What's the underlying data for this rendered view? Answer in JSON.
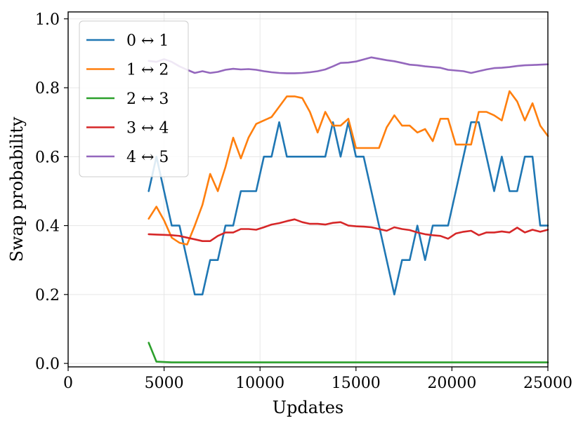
{
  "chart_data": {
    "type": "line",
    "xlabel": "Updates",
    "ylabel": "Swap probability",
    "xlim": [
      0,
      25000
    ],
    "ylim": [
      -0.01,
      1.02
    ],
    "xticks": [
      "0",
      "5000",
      "10000",
      "15000",
      "20000",
      "25000"
    ],
    "yticks": [
      "0.0",
      "0.2",
      "0.4",
      "0.6",
      "0.8",
      "1.0"
    ],
    "grid": true,
    "legend_position": "upper-left",
    "x": [
      4200,
      4600,
      5000,
      5400,
      5800,
      6200,
      6600,
      7000,
      7400,
      7800,
      8200,
      8600,
      9000,
      9400,
      9800,
      10200,
      10600,
      11000,
      11400,
      11800,
      12200,
      12600,
      13000,
      13400,
      13800,
      14200,
      14600,
      15000,
      15400,
      15800,
      16200,
      16600,
      17000,
      17400,
      17800,
      18200,
      18600,
      19000,
      19400,
      19800,
      20200,
      20600,
      21000,
      21400,
      21800,
      22200,
      22600,
      23000,
      23400,
      23800,
      24200,
      24600,
      25000
    ],
    "series": [
      {
        "name": "0 ↔ 1",
        "color": "#1f77b4",
        "values": [
          0.5,
          0.6,
          0.5,
          0.4,
          0.4,
          0.3,
          0.2,
          0.2,
          0.3,
          0.3,
          0.4,
          0.4,
          0.5,
          0.5,
          0.5,
          0.6,
          0.6,
          0.7,
          0.6,
          0.6,
          0.6,
          0.6,
          0.6,
          0.6,
          0.7,
          0.6,
          0.7,
          0.6,
          0.6,
          0.5,
          0.4,
          0.3,
          0.2,
          0.3,
          0.3,
          0.4,
          0.3,
          0.4,
          0.4,
          0.4,
          0.5,
          0.6,
          0.7,
          0.7,
          0.6,
          0.5,
          0.6,
          0.5,
          0.5,
          0.6,
          0.6,
          0.4,
          0.4
        ]
      },
      {
        "name": "1 ↔ 2",
        "color": "#ff7f0e",
        "values": [
          0.42,
          0.455,
          0.415,
          0.365,
          0.35,
          0.345,
          0.4,
          0.46,
          0.55,
          0.5,
          0.57,
          0.655,
          0.595,
          0.655,
          0.695,
          0.705,
          0.715,
          0.745,
          0.775,
          0.775,
          0.77,
          0.73,
          0.67,
          0.73,
          0.69,
          0.69,
          0.71,
          0.625,
          0.625,
          0.625,
          0.625,
          0.685,
          0.72,
          0.69,
          0.69,
          0.67,
          0.68,
          0.645,
          0.71,
          0.71,
          0.635,
          0.635,
          0.635,
          0.73,
          0.73,
          0.72,
          0.705,
          0.79,
          0.76,
          0.705,
          0.755,
          0.69,
          0.66
        ]
      },
      {
        "name": "2 ↔ 3",
        "color": "#2ca02c",
        "values": [
          0.06,
          0.005,
          0.004,
          0.003,
          0.003,
          0.003,
          0.003,
          0.003,
          0.003,
          0.003,
          0.003,
          0.003,
          0.003,
          0.003,
          0.003,
          0.003,
          0.003,
          0.003,
          0.003,
          0.003,
          0.003,
          0.003,
          0.003,
          0.003,
          0.003,
          0.003,
          0.003,
          0.003,
          0.003,
          0.003,
          0.003,
          0.003,
          0.003,
          0.003,
          0.003,
          0.003,
          0.003,
          0.003,
          0.003,
          0.003,
          0.003,
          0.003,
          0.003,
          0.003,
          0.003,
          0.003,
          0.003,
          0.003,
          0.003,
          0.003,
          0.003,
          0.003,
          0.003
        ]
      },
      {
        "name": "3 ↔ 4",
        "color": "#d62728",
        "values": [
          0.375,
          0.374,
          0.373,
          0.372,
          0.37,
          0.365,
          0.36,
          0.355,
          0.355,
          0.37,
          0.38,
          0.38,
          0.39,
          0.39,
          0.388,
          0.395,
          0.403,
          0.407,
          0.413,
          0.418,
          0.41,
          0.405,
          0.405,
          0.403,
          0.408,
          0.41,
          0.4,
          0.398,
          0.397,
          0.395,
          0.39,
          0.385,
          0.395,
          0.39,
          0.387,
          0.38,
          0.375,
          0.372,
          0.37,
          0.362,
          0.377,
          0.382,
          0.385,
          0.372,
          0.38,
          0.38,
          0.383,
          0.38,
          0.394,
          0.38,
          0.388,
          0.382,
          0.388
        ]
      },
      {
        "name": "4 ↔ 5",
        "color": "#9467bd",
        "values": [
          0.878,
          0.875,
          0.883,
          0.875,
          0.862,
          0.852,
          0.843,
          0.848,
          0.843,
          0.846,
          0.852,
          0.855,
          0.853,
          0.854,
          0.852,
          0.848,
          0.845,
          0.843,
          0.842,
          0.842,
          0.843,
          0.845,
          0.848,
          0.853,
          0.862,
          0.872,
          0.873,
          0.876,
          0.882,
          0.888,
          0.884,
          0.88,
          0.877,
          0.872,
          0.867,
          0.865,
          0.862,
          0.86,
          0.858,
          0.852,
          0.85,
          0.848,
          0.843,
          0.848,
          0.853,
          0.857,
          0.858,
          0.86,
          0.863,
          0.865,
          0.866,
          0.867,
          0.868
        ]
      }
    ]
  }
}
